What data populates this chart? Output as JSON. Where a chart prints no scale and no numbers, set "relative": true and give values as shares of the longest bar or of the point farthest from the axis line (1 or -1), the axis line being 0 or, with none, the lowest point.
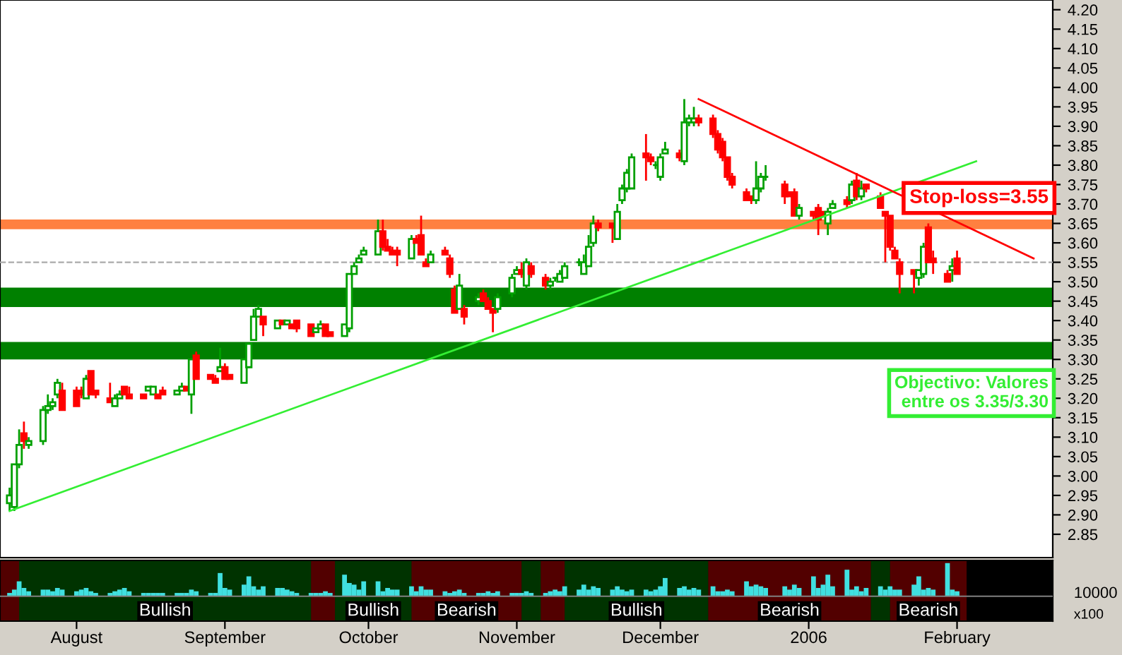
{
  "chart_data": [
    {
      "type": "candlestick",
      "x": [
        "2005-07-18",
        "2005-07-19",
        "2005-07-20",
        "2005-07-21",
        "2005-07-22",
        "2005-07-25",
        "2005-07-26",
        "2005-07-27",
        "2005-07-28",
        "2005-07-29",
        "2005-08-01",
        "2005-08-02",
        "2005-08-03",
        "2005-08-04",
        "2005-08-05",
        "2005-08-08",
        "2005-08-09",
        "2005-08-10",
        "2005-08-11",
        "2005-08-12",
        "2005-08-15",
        "2005-08-16",
        "2005-08-17",
        "2005-08-18",
        "2005-08-19",
        "2005-08-22",
        "2005-08-23",
        "2005-08-24",
        "2005-08-25",
        "2005-08-26",
        "2005-08-29",
        "2005-08-30",
        "2005-08-31",
        "2005-09-01",
        "2005-09-02",
        "2005-09-05",
        "2005-09-06",
        "2005-09-07",
        "2005-09-08",
        "2005-09-09",
        "2005-09-12",
        "2005-09-13",
        "2005-09-14",
        "2005-09-15",
        "2005-09-16",
        "2005-09-19",
        "2005-09-20",
        "2005-09-21",
        "2005-09-22",
        "2005-09-23",
        "2005-09-26",
        "2005-09-27",
        "2005-09-28",
        "2005-09-29",
        "2005-09-30",
        "2005-10-03",
        "2005-10-04",
        "2005-10-05",
        "2005-10-06",
        "2005-10-07",
        "2005-10-10",
        "2005-10-11",
        "2005-10-12",
        "2005-10-13",
        "2005-10-14",
        "2005-10-17",
        "2005-10-18",
        "2005-10-19",
        "2005-10-20",
        "2005-10-21",
        "2005-10-24",
        "2005-10-25",
        "2005-10-26",
        "2005-10-27",
        "2005-10-28",
        "2005-10-31",
        "2005-11-01",
        "2005-11-02",
        "2005-11-03",
        "2005-11-04",
        "2005-11-07",
        "2005-11-08",
        "2005-11-09",
        "2005-11-10",
        "2005-11-11",
        "2005-11-14",
        "2005-11-15",
        "2005-11-16",
        "2005-11-17",
        "2005-11-18",
        "2005-11-21",
        "2005-11-22",
        "2005-11-23",
        "2005-11-24",
        "2005-11-25",
        "2005-11-28",
        "2005-11-29",
        "2005-11-30",
        "2005-12-01",
        "2005-12-02",
        "2005-12-05",
        "2005-12-06",
        "2005-12-07",
        "2005-12-08",
        "2005-12-09",
        "2005-12-12",
        "2005-12-13",
        "2005-12-14",
        "2005-12-15",
        "2005-12-16",
        "2005-12-19",
        "2005-12-20",
        "2005-12-21",
        "2005-12-22",
        "2005-12-23",
        "2005-12-27",
        "2005-12-28",
        "2005-12-29",
        "2005-12-30",
        "2006-01-02",
        "2006-01-03",
        "2006-01-04",
        "2006-01-05",
        "2006-01-06",
        "2006-01-09",
        "2006-01-10",
        "2006-01-11",
        "2006-01-12",
        "2006-01-13",
        "2006-01-16",
        "2006-01-17",
        "2006-01-18",
        "2006-01-19",
        "2006-01-20",
        "2006-01-23",
        "2006-01-24",
        "2006-01-25",
        "2006-01-26",
        "2006-01-27",
        "2006-01-30",
        "2006-01-31",
        "2006-02-01"
      ],
      "ohlc": [
        [
          2.93,
          2.97,
          2.91,
          2.95
        ],
        [
          2.92,
          3.03,
          2.91,
          3.03
        ],
        [
          3.03,
          3.12,
          3.02,
          3.08
        ],
        [
          3.11,
          3.14,
          3.07,
          3.09
        ],
        [
          3.08,
          3.1,
          3.07,
          3.09
        ],
        [
          3.09,
          3.18,
          3.08,
          3.17
        ],
        [
          3.17,
          3.21,
          3.16,
          3.18
        ],
        [
          3.18,
          3.2,
          3.17,
          3.19
        ],
        [
          3.21,
          3.25,
          3.2,
          3.24
        ],
        [
          3.22,
          3.24,
          3.17,
          3.17
        ],
        [
          3.22,
          3.23,
          3.18,
          3.18
        ],
        [
          3.22,
          3.23,
          3.2,
          3.21
        ],
        [
          3.2,
          3.26,
          3.2,
          3.25
        ],
        [
          3.27,
          3.27,
          3.21,
          3.21
        ],
        [
          3.22,
          3.22,
          3.2,
          3.21
        ],
        [
          3.2,
          3.24,
          3.19,
          3.19
        ],
        [
          3.18,
          3.21,
          3.18,
          3.2
        ],
        [
          3.2,
          3.22,
          3.2,
          3.21
        ],
        [
          3.23,
          3.23,
          3.21,
          3.21
        ],
        [
          3.21,
          3.23,
          3.2,
          3.2
        ],
        [
          3.21,
          3.21,
          3.2,
          3.2
        ],
        [
          3.22,
          3.23,
          3.22,
          3.23
        ],
        [
          3.21,
          3.23,
          3.21,
          3.23
        ],
        [
          3.21,
          3.21,
          3.2,
          3.2
        ],
        [
          3.22,
          3.23,
          3.21,
          3.21
        ],
        [
          3.21,
          3.22,
          3.21,
          3.22
        ],
        [
          3.22,
          3.24,
          3.22,
          3.23
        ],
        [
          3.23,
          3.23,
          3.22,
          3.22
        ],
        [
          3.21,
          3.3,
          3.16,
          3.3
        ],
        [
          3.31,
          3.32,
          3.25,
          3.25
        ],
        [
          3.26,
          3.26,
          3.25,
          3.25
        ],
        [
          3.25,
          3.26,
          3.24,
          3.24
        ],
        [
          3.27,
          3.33,
          3.27,
          3.28
        ],
        [
          3.28,
          3.29,
          3.25,
          3.25
        ],
        [
          3.26,
          3.26,
          3.25,
          3.25
        ],
        [
          3.24,
          3.3,
          3.24,
          3.3
        ],
        [
          3.28,
          3.34,
          3.28,
          3.34
        ],
        [
          3.35,
          3.43,
          3.35,
          3.41
        ],
        [
          3.41,
          3.44,
          3.41,
          3.43
        ],
        [
          3.41,
          3.41,
          3.36,
          3.39
        ],
        [
          3.38,
          3.4,
          3.38,
          3.4
        ],
        [
          3.4,
          3.4,
          3.39,
          3.39
        ],
        [
          3.39,
          3.4,
          3.39,
          3.4
        ],
        [
          3.39,
          3.39,
          3.38,
          3.38
        ],
        [
          3.4,
          3.4,
          3.37,
          3.38
        ],
        [
          3.39,
          3.39,
          3.36,
          3.36
        ],
        [
          3.37,
          3.38,
          3.37,
          3.38
        ],
        [
          3.38,
          3.4,
          3.38,
          3.39
        ],
        [
          3.39,
          3.39,
          3.36,
          3.36
        ],
        [
          3.37,
          3.37,
          3.36,
          3.36
        ],
        [
          3.36,
          3.39,
          3.36,
          3.39
        ],
        [
          3.38,
          3.52,
          3.37,
          3.52
        ],
        [
          3.52,
          3.55,
          3.52,
          3.54
        ],
        [
          3.55,
          3.57,
          3.55,
          3.56
        ],
        [
          3.57,
          3.59,
          3.57,
          3.58
        ],
        [
          3.57,
          3.66,
          3.57,
          3.63
        ],
        [
          3.63,
          3.66,
          3.58,
          3.59
        ],
        [
          3.59,
          3.61,
          3.58,
          3.58
        ],
        [
          3.58,
          3.59,
          3.57,
          3.57
        ],
        [
          3.58,
          3.59,
          3.54,
          3.57
        ],
        [
          3.56,
          3.62,
          3.56,
          3.61
        ],
        [
          3.61,
          3.62,
          3.6,
          3.6
        ],
        [
          3.62,
          3.67,
          3.57,
          3.57
        ],
        [
          3.55,
          3.56,
          3.54,
          3.54
        ],
        [
          3.55,
          3.58,
          3.55,
          3.57
        ],
        [
          3.58,
          3.59,
          3.57,
          3.57
        ],
        [
          3.56,
          3.57,
          3.51,
          3.52
        ],
        [
          3.48,
          3.49,
          3.42,
          3.42
        ],
        [
          3.43,
          3.52,
          3.43,
          3.49
        ],
        [
          3.43,
          3.44,
          3.39,
          3.41
        ],
        [
          3.45,
          3.47,
          3.44,
          3.46
        ],
        [
          3.47,
          3.48,
          3.45,
          3.45
        ],
        [
          3.45,
          3.46,
          3.43,
          3.43
        ],
        [
          3.43,
          3.43,
          3.37,
          3.42
        ],
        [
          3.43,
          3.47,
          3.42,
          3.46
        ],
        [
          3.47,
          3.52,
          3.46,
          3.51
        ],
        [
          3.52,
          3.54,
          3.52,
          3.53
        ],
        [
          3.53,
          3.55,
          3.51,
          3.52
        ],
        [
          3.49,
          3.56,
          3.48,
          3.55
        ],
        [
          3.54,
          3.55,
          3.51,
          3.52
        ],
        [
          3.51,
          3.52,
          3.48,
          3.49
        ],
        [
          3.49,
          3.51,
          3.48,
          3.5
        ],
        [
          3.51,
          3.51,
          3.5,
          3.51
        ],
        [
          3.5,
          3.53,
          3.5,
          3.52
        ],
        [
          3.51,
          3.55,
          3.51,
          3.54
        ],
        [
          3.55,
          3.56,
          3.54,
          3.55
        ],
        [
          3.52,
          3.57,
          3.52,
          3.55
        ],
        [
          3.54,
          3.62,
          3.54,
          3.59
        ],
        [
          3.6,
          3.67,
          3.59,
          3.65
        ],
        [
          3.65,
          3.66,
          3.63,
          3.64
        ],
        [
          3.65,
          3.65,
          3.6,
          3.64
        ],
        [
          3.61,
          3.7,
          3.61,
          3.68
        ],
        [
          3.71,
          3.75,
          3.7,
          3.74
        ],
        [
          3.74,
          3.79,
          3.73,
          3.78
        ],
        [
          3.74,
          3.83,
          3.74,
          3.82
        ],
        [
          3.83,
          3.88,
          3.76,
          3.82
        ],
        [
          3.82,
          3.83,
          3.8,
          3.81
        ],
        [
          3.8,
          3.81,
          3.79,
          3.8
        ],
        [
          3.77,
          3.83,
          3.76,
          3.82
        ],
        [
          3.83,
          3.86,
          3.83,
          3.84
        ],
        [
          3.83,
          3.84,
          3.81,
          3.82
        ],
        [
          3.81,
          3.97,
          3.8,
          3.91
        ],
        [
          3.91,
          3.93,
          3.9,
          3.92
        ],
        [
          3.91,
          3.95,
          3.9,
          3.92
        ],
        [
          3.92,
          3.93,
          3.9,
          3.91
        ],
        [
          3.92,
          3.93,
          3.87,
          3.88
        ],
        [
          3.88,
          3.89,
          3.83,
          3.84
        ],
        [
          3.86,
          3.87,
          3.81,
          3.82
        ],
        [
          3.82,
          3.82,
          3.76,
          3.77
        ],
        [
          3.77,
          3.78,
          3.74,
          3.75
        ],
        [
          3.73,
          3.74,
          3.71,
          3.71
        ],
        [
          3.72,
          3.72,
          3.7,
          3.71
        ],
        [
          3.71,
          3.81,
          3.7,
          3.74
        ],
        [
          3.74,
          3.78,
          3.73,
          3.77
        ],
        [
          3.77,
          3.8,
          3.76,
          3.77
        ],
        [
          3.75,
          3.76,
          3.7,
          3.72
        ],
        [
          3.73,
          3.73,
          3.72,
          3.72
        ],
        [
          3.73,
          3.74,
          3.67,
          3.67
        ],
        [
          3.67,
          3.7,
          3.66,
          3.69
        ],
        [
          3.68,
          3.68,
          3.66,
          3.67
        ],
        [
          3.69,
          3.7,
          3.62,
          3.66
        ],
        [
          3.68,
          3.68,
          3.67,
          3.67
        ],
        [
          3.65,
          3.69,
          3.62,
          3.68
        ],
        [
          3.69,
          3.71,
          3.69,
          3.7
        ],
        [
          3.71,
          3.72,
          3.69,
          3.7
        ],
        [
          3.71,
          3.76,
          3.7,
          3.75
        ],
        [
          3.76,
          3.78,
          3.71,
          3.72
        ],
        [
          3.72,
          3.76,
          3.71,
          3.74
        ],
        [
          3.75,
          3.75,
          3.73,
          3.74
        ],
        [
          3.72,
          3.73,
          3.69,
          3.69
        ],
        [
          3.68,
          3.68,
          3.55,
          3.67
        ],
        [
          3.67,
          3.67,
          3.58,
          3.59
        ],
        [
          3.58,
          3.59,
          3.56,
          3.56
        ],
        [
          3.55,
          3.56,
          3.47,
          3.52
        ],
        [
          3.53,
          3.53,
          3.47,
          3.52
        ],
        [
          3.51,
          3.53,
          3.49,
          3.53
        ],
        [
          3.52,
          3.6,
          3.51,
          3.59
        ],
        [
          3.64,
          3.65,
          3.55,
          3.55
        ],
        [
          3.56,
          3.58,
          3.52,
          3.55
        ],
        [
          3.52,
          3.53,
          3.5,
          3.5
        ],
        [
          3.53,
          3.56,
          3.5,
          3.54
        ],
        [
          3.56,
          3.58,
          3.52,
          3.52
        ]
      ],
      "series": [
        {
          "type": "line",
          "color": "#33ee33",
          "x": [
            "2005-07-18",
            "2006-02-05"
          ],
          "values": [
            2.91,
            3.81
          ]
        },
        {
          "type": "line",
          "color": "#ff0000",
          "x": [
            "2005-12-09",
            "2006-02-17"
          ],
          "values": [
            3.97,
            3.56
          ]
        }
      ],
      "bands": [
        {
          "axis": "y",
          "from": 3.635,
          "to": 3.66,
          "color": "#ff8040"
        },
        {
          "axis": "y",
          "from": 3.435,
          "to": 3.485,
          "color": "#008000"
        },
        {
          "axis": "y",
          "from": 3.3,
          "to": 3.345,
          "color": "#008000"
        }
      ],
      "ref_lines": [
        {
          "axis": "y",
          "value": 3.55,
          "color": "#aaaaaa",
          "line_style": "dashed"
        }
      ],
      "annotations": [
        "Stop-loss=3.55",
        "Objectivo: Valores\nentre os 3.35/3.30"
      ],
      "xlim": [
        "2005-07-16",
        "2006-02-21"
      ],
      "ylim": [
        2.79,
        4.225
      ],
      "yticks": [
        {
          "value": 2.85,
          "label": "2.85"
        },
        {
          "value": 2.9,
          "label": "2.90"
        },
        {
          "value": 2.95,
          "label": "2.95"
        },
        {
          "value": 3.0,
          "label": "3.00"
        },
        {
          "value": 3.05,
          "label": "3.05"
        },
        {
          "value": 3.1,
          "label": "3.10"
        },
        {
          "value": 3.15,
          "label": "3.15"
        },
        {
          "value": 3.2,
          "label": "3.20"
        },
        {
          "value": 3.25,
          "label": "3.25"
        },
        {
          "value": 3.3,
          "label": "3.30"
        },
        {
          "value": 3.35,
          "label": "3.35"
        },
        {
          "value": 3.4,
          "label": "3.40"
        },
        {
          "value": 3.45,
          "label": "3.45"
        },
        {
          "value": 3.5,
          "label": "3.50"
        },
        {
          "value": 3.55,
          "label": "3.55"
        },
        {
          "value": 3.6,
          "label": "3.60"
        },
        {
          "value": 3.65,
          "label": "3.65"
        },
        {
          "value": 3.7,
          "label": "3.70"
        },
        {
          "value": 3.75,
          "label": "3.75"
        },
        {
          "value": 3.8,
          "label": "3.80"
        },
        {
          "value": 3.85,
          "label": "3.85"
        },
        {
          "value": 3.9,
          "label": "3.90"
        },
        {
          "value": 3.95,
          "label": "3.95"
        },
        {
          "value": 4.0,
          "label": "4.00"
        },
        {
          "value": 4.05,
          "label": "4.05"
        },
        {
          "value": 4.1,
          "label": "4.10"
        },
        {
          "value": 4.15,
          "label": "4.15"
        },
        {
          "value": 4.2,
          "label": "4.20"
        }
      ],
      "tick_labels": "y",
      "grid": false,
      "legend": false
    },
    {
      "type": "bar",
      "relative": true,
      "color": "#40e0e0",
      "x": [
        "2005-07-18",
        "2005-07-19",
        "2005-07-20",
        "2005-07-21",
        "2005-07-22",
        "2005-07-25",
        "2005-07-26",
        "2005-07-27",
        "2005-07-28",
        "2005-07-29",
        "2005-08-01",
        "2005-08-02",
        "2005-08-03",
        "2005-08-04",
        "2005-08-05",
        "2005-08-08",
        "2005-08-09",
        "2005-08-10",
        "2005-08-11",
        "2005-08-12",
        "2005-08-15",
        "2005-08-16",
        "2005-08-17",
        "2005-08-18",
        "2005-08-19",
        "2005-08-22",
        "2005-08-23",
        "2005-08-24",
        "2005-08-25",
        "2005-08-26",
        "2005-08-29",
        "2005-08-30",
        "2005-08-31",
        "2005-09-01",
        "2005-09-02",
        "2005-09-05",
        "2005-09-06",
        "2005-09-07",
        "2005-09-08",
        "2005-09-09",
        "2005-09-12",
        "2005-09-13",
        "2005-09-14",
        "2005-09-15",
        "2005-09-16",
        "2005-09-19",
        "2005-09-20",
        "2005-09-21",
        "2005-09-22",
        "2005-09-23",
        "2005-09-26",
        "2005-09-27",
        "2005-09-28",
        "2005-09-29",
        "2005-09-30",
        "2005-10-03",
        "2005-10-04",
        "2005-10-05",
        "2005-10-06",
        "2005-10-07",
        "2005-10-10",
        "2005-10-11",
        "2005-10-12",
        "2005-10-13",
        "2005-10-14",
        "2005-10-17",
        "2005-10-18",
        "2005-10-19",
        "2005-10-20",
        "2005-10-21",
        "2005-10-24",
        "2005-10-25",
        "2005-10-26",
        "2005-10-27",
        "2005-10-28",
        "2005-10-31",
        "2005-11-01",
        "2005-11-02",
        "2005-11-03",
        "2005-11-04",
        "2005-11-07",
        "2005-11-08",
        "2005-11-09",
        "2005-11-10",
        "2005-11-11",
        "2005-11-14",
        "2005-11-15",
        "2005-11-16",
        "2005-11-17",
        "2005-11-18",
        "2005-11-21",
        "2005-11-22",
        "2005-11-23",
        "2005-11-24",
        "2005-11-25",
        "2005-11-28",
        "2005-11-29",
        "2005-11-30",
        "2005-12-01",
        "2005-12-02",
        "2005-12-05",
        "2005-12-06",
        "2005-12-07",
        "2005-12-08",
        "2005-12-09",
        "2005-12-12",
        "2005-12-13",
        "2005-12-14",
        "2005-12-15",
        "2005-12-16",
        "2005-12-19",
        "2005-12-20",
        "2005-12-21",
        "2005-12-22",
        "2005-12-23",
        "2005-12-27",
        "2005-12-28",
        "2005-12-29",
        "2005-12-30",
        "2006-01-02",
        "2006-01-03",
        "2006-01-04",
        "2006-01-05",
        "2006-01-06",
        "2006-01-09",
        "2006-01-10",
        "2006-01-11",
        "2006-01-12",
        "2006-01-13",
        "2006-01-16",
        "2006-01-17",
        "2006-01-18",
        "2006-01-19",
        "2006-01-20",
        "2006-01-23",
        "2006-01-24",
        "2006-01-25",
        "2006-01-26",
        "2006-01-27",
        "2006-01-30",
        "2006-01-31",
        "2006-02-01"
      ],
      "values": [
        0.1,
        0.2,
        0.45,
        0.25,
        0.15,
        0.2,
        0.2,
        0.15,
        0.25,
        0.2,
        0.15,
        0.2,
        0.25,
        0.15,
        0.1,
        0.1,
        0.15,
        0.2,
        0.25,
        0.15,
        0.1,
        0.1,
        0.1,
        0.1,
        0.1,
        0.1,
        0.1,
        0.1,
        0.2,
        0.15,
        0.1,
        0.1,
        0.7,
        0.25,
        0.2,
        0.35,
        0.6,
        0.3,
        0.2,
        0.3,
        0.25,
        0.25,
        0.2,
        0.15,
        0.1,
        0.1,
        0.1,
        0.1,
        0.15,
        0.1,
        0.65,
        0.4,
        0.35,
        0.2,
        0.45,
        0.45,
        0.15,
        0.25,
        0.2,
        0.2,
        0.3,
        0.15,
        0.3,
        0.2,
        0.2,
        0.15,
        0.1,
        0.15,
        0.2,
        0.1,
        0.1,
        0.1,
        0.15,
        0.1,
        0.15,
        0.1,
        0.1,
        0.1,
        0.15,
        0.1,
        0.1,
        0.15,
        0.2,
        0.15,
        0.3,
        0.2,
        0.35,
        0.2,
        0.3,
        0.25,
        0.2,
        0.3,
        0.2,
        0.15,
        0.2,
        0.2,
        0.15,
        0.2,
        0.3,
        0.55,
        0.25,
        0.3,
        0.2,
        0.25,
        0.2,
        0.3,
        0.15,
        0.15,
        0.2,
        0.15,
        0.45,
        0.3,
        0.35,
        0.3,
        0.25,
        0.3,
        0.2,
        0.35,
        0.25,
        0.6,
        0.25,
        0.35,
        0.65,
        0.3,
        0.8,
        0.2,
        0.3,
        0.15,
        0.25,
        0.3,
        0.2,
        0.3,
        0.2,
        0.2,
        0.35,
        0.6,
        0.2,
        0.25,
        0.2,
        1.0,
        0.2,
        0.15
      ],
      "bands": [
        {
          "axis": "x",
          "from": "2005-07-16",
          "to": "2005-07-20",
          "color": "#cc0000"
        },
        {
          "axis": "x",
          "from": "2005-07-20",
          "to": "2005-09-19",
          "color": "#008000",
          "label": "Bullish"
        },
        {
          "axis": "x",
          "from": "2005-09-19",
          "to": "2005-09-24",
          "color": "#cc0000"
        },
        {
          "axis": "x",
          "from": "2005-09-24",
          "to": "2005-10-10",
          "color": "#008000",
          "label": "Bullish"
        },
        {
          "axis": "x",
          "from": "2005-10-10",
          "to": "2005-11-02",
          "color": "#cc0000",
          "label": "Bearish"
        },
        {
          "axis": "x",
          "from": "2005-11-02",
          "to": "2005-11-06",
          "color": "#008000"
        },
        {
          "axis": "x",
          "from": "2005-11-06",
          "to": "2005-11-11",
          "color": "#cc0000"
        },
        {
          "axis": "x",
          "from": "2005-11-11",
          "to": "2005-12-11",
          "color": "#008000",
          "label": "Bullish"
        },
        {
          "axis": "x",
          "from": "2005-12-11",
          "to": "2006-01-14",
          "color": "#cc0000",
          "label": "Bearish"
        },
        {
          "axis": "x",
          "from": "2006-01-14",
          "to": "2006-01-18",
          "color": "#008000"
        },
        {
          "axis": "x",
          "from": "2006-01-18",
          "to": "2006-02-03",
          "color": "#cc0000",
          "label": "Bearish"
        }
      ],
      "annotations": [
        "10000",
        "x100"
      ],
      "xlim": [
        "2005-07-16",
        "2006-02-21"
      ],
      "xticks": [
        {
          "value": "2005-08-01",
          "label": "August"
        },
        {
          "value": "2005-09-01",
          "label": "September"
        },
        {
          "value": "2005-10-01",
          "label": "October"
        },
        {
          "value": "2005-11-01",
          "label": "November"
        },
        {
          "value": "2005-12-01",
          "label": "December"
        },
        {
          "value": "2006-01-01",
          "label": "2006"
        },
        {
          "value": "2006-02-01",
          "label": "February"
        }
      ],
      "tick_labels": "x",
      "grid": false,
      "legend": false
    }
  ]
}
